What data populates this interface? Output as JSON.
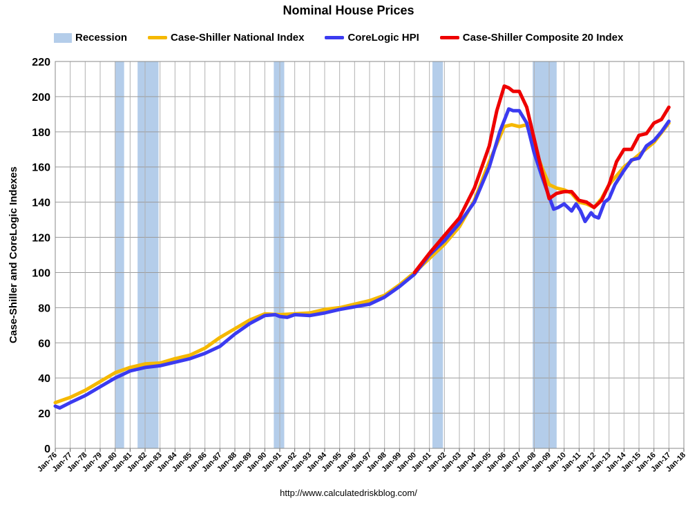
{
  "chart_data": {
    "type": "line",
    "title": "Nominal House Prices",
    "xlabel": "",
    "ylabel": "Case-Shiller and CoreLogic Indexes",
    "ylim": [
      0,
      220
    ],
    "yticks": [
      0,
      20,
      40,
      60,
      80,
      100,
      120,
      140,
      160,
      180,
      200,
      220
    ],
    "xlim": [
      1976,
      2018
    ],
    "xtick_labels": [
      "Jan-76",
      "Jan-77",
      "Jan-78",
      "Jan-79",
      "Jan-80",
      "Jan-81",
      "Jan-82",
      "Jan-83",
      "Jan-84",
      "Jan-85",
      "Jan-86",
      "Jan-87",
      "Jan-88",
      "Jan-89",
      "Jan-90",
      "Jan-91",
      "Jan-92",
      "Jan-93",
      "Jan-94",
      "Jan-95",
      "Jan-96",
      "Jan-97",
      "Jan-98",
      "Jan-99",
      "Jan-00",
      "Jan-01",
      "Jan-02",
      "Jan-03",
      "Jan-04",
      "Jan-05",
      "Jan-06",
      "Jan-07",
      "Jan-08",
      "Jan-09",
      "Jan-10",
      "Jan-11",
      "Jan-12",
      "Jan-13",
      "Jan-14",
      "Jan-15",
      "Jan-16",
      "Jan-17",
      "Jan-18"
    ],
    "grid": true,
    "legend_position": "top",
    "recessions": [
      [
        1980.0,
        1980.6
      ],
      [
        1981.5,
        1982.9
      ],
      [
        1990.6,
        1991.3
      ],
      [
        2001.2,
        2001.9
      ],
      [
        2007.9,
        2009.5
      ]
    ],
    "recession_label": "Recession",
    "recession_color": "#b4cdea",
    "series": [
      {
        "name": "Case-Shiller National Index",
        "color": "#f5b800",
        "points": [
          [
            1976,
            26
          ],
          [
            1977,
            29
          ],
          [
            1978,
            33
          ],
          [
            1979,
            38
          ],
          [
            1980,
            43
          ],
          [
            1981,
            46
          ],
          [
            1982,
            48
          ],
          [
            1983,
            48.5
          ],
          [
            1984,
            51
          ],
          [
            1985,
            53
          ],
          [
            1986,
            57
          ],
          [
            1987,
            63
          ],
          [
            1988,
            68
          ],
          [
            1989,
            73
          ],
          [
            1990,
            76.5
          ],
          [
            1991,
            76
          ],
          [
            1992,
            76.5
          ],
          [
            1993,
            77
          ],
          [
            1994,
            79
          ],
          [
            1995,
            80
          ],
          [
            1996,
            82
          ],
          [
            1997,
            84
          ],
          [
            1998,
            87
          ],
          [
            1999,
            93
          ],
          [
            2000,
            100
          ],
          [
            2001,
            108
          ],
          [
            2002,
            116
          ],
          [
            2003,
            126
          ],
          [
            2004,
            141
          ],
          [
            2005,
            163
          ],
          [
            2006,
            183
          ],
          [
            2006.5,
            184
          ],
          [
            2007,
            183
          ],
          [
            2007.5,
            184
          ],
          [
            2008,
            172
          ],
          [
            2008.5,
            160
          ],
          [
            2009,
            150
          ],
          [
            2009.5,
            148
          ],
          [
            2010,
            147
          ],
          [
            2010.5,
            145
          ],
          [
            2011,
            140
          ],
          [
            2011.5,
            139
          ],
          [
            2012,
            137
          ],
          [
            2012.5,
            142
          ],
          [
            2013,
            150
          ],
          [
            2014,
            160
          ],
          [
            2015,
            167
          ],
          [
            2016,
            174
          ],
          [
            2017,
            185
          ]
        ]
      },
      {
        "name": "CoreLogic HPI",
        "color": "#3b3bf0",
        "points": [
          [
            1976,
            24
          ],
          [
            1976.3,
            23
          ],
          [
            1977,
            26
          ],
          [
            1978,
            30
          ],
          [
            1979,
            35
          ],
          [
            1980,
            40
          ],
          [
            1981,
            44
          ],
          [
            1982,
            46
          ],
          [
            1983,
            47
          ],
          [
            1984,
            49
          ],
          [
            1985,
            51
          ],
          [
            1986,
            54
          ],
          [
            1987,
            58
          ],
          [
            1988,
            65
          ],
          [
            1989,
            71
          ],
          [
            1990,
            75.5
          ],
          [
            1990.7,
            76
          ],
          [
            1991,
            75
          ],
          [
            1991.5,
            74.5
          ],
          [
            1992,
            76
          ],
          [
            1993,
            75.5
          ],
          [
            1994,
            77
          ],
          [
            1995,
            79
          ],
          [
            1996,
            80.5
          ],
          [
            1997,
            82
          ],
          [
            1998,
            86
          ],
          [
            1999,
            92
          ],
          [
            2000,
            99
          ],
          [
            2001,
            110
          ],
          [
            2002,
            118
          ],
          [
            2003,
            128
          ],
          [
            2004,
            140
          ],
          [
            2005,
            160
          ],
          [
            2005.7,
            180
          ],
          [
            2006.3,
            193
          ],
          [
            2006.6,
            192
          ],
          [
            2007,
            192
          ],
          [
            2007.5,
            185
          ],
          [
            2008,
            168
          ],
          [
            2008.5,
            155
          ],
          [
            2009,
            143
          ],
          [
            2009.3,
            136
          ],
          [
            2009.6,
            137
          ],
          [
            2010,
            139
          ],
          [
            2010.5,
            135
          ],
          [
            2010.8,
            139
          ],
          [
            2011.1,
            135
          ],
          [
            2011.4,
            129
          ],
          [
            2011.8,
            134
          ],
          [
            2012,
            132
          ],
          [
            2012.3,
            131
          ],
          [
            2012.7,
            140
          ],
          [
            2013,
            142
          ],
          [
            2013.4,
            150
          ],
          [
            2014,
            158
          ],
          [
            2014.5,
            164
          ],
          [
            2015,
            165
          ],
          [
            2015.5,
            172
          ],
          [
            2016,
            175
          ],
          [
            2016.5,
            180
          ],
          [
            2017,
            186
          ]
        ]
      },
      {
        "name": "Case-Shiller Composite 20 Index",
        "color": "#ee0000",
        "points": [
          [
            2000,
            100
          ],
          [
            2001,
            111
          ],
          [
            2002,
            121
          ],
          [
            2003,
            131
          ],
          [
            2004,
            148
          ],
          [
            2005,
            172
          ],
          [
            2005.5,
            192
          ],
          [
            2006,
            206
          ],
          [
            2006.3,
            205
          ],
          [
            2006.6,
            203
          ],
          [
            2007,
            203
          ],
          [
            2007.5,
            194
          ],
          [
            2008,
            176
          ],
          [
            2008.5,
            158
          ],
          [
            2009,
            142
          ],
          [
            2009.5,
            145
          ],
          [
            2010,
            146
          ],
          [
            2010.5,
            146
          ],
          [
            2011,
            141
          ],
          [
            2011.5,
            140
          ],
          [
            2012,
            137
          ],
          [
            2012.5,
            141
          ],
          [
            2013,
            150
          ],
          [
            2013.5,
            163
          ],
          [
            2014,
            170
          ],
          [
            2014.5,
            170
          ],
          [
            2015,
            178
          ],
          [
            2015.5,
            179
          ],
          [
            2016,
            185
          ],
          [
            2016.5,
            187
          ],
          [
            2017,
            194
          ]
        ]
      }
    ],
    "source": "http://www.calculatedriskblog.com/"
  }
}
